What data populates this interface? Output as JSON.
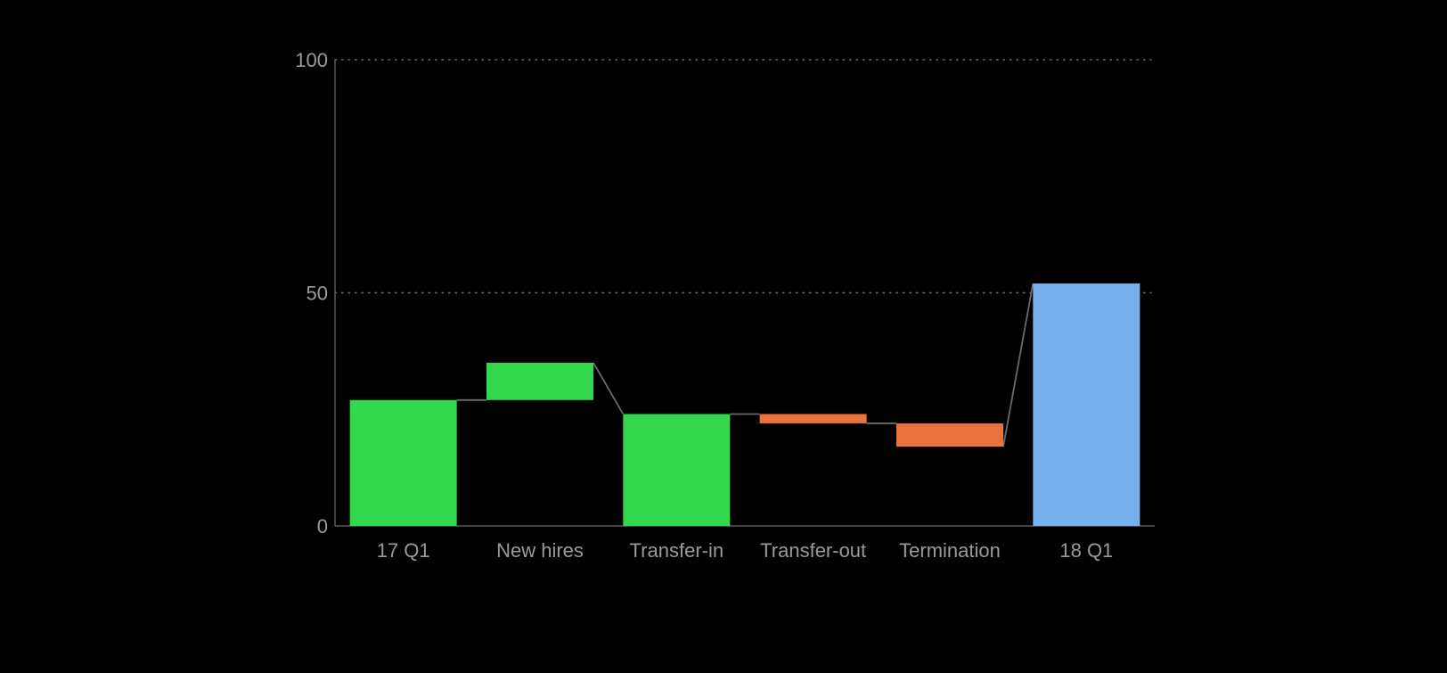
{
  "chart_data": {
    "type": "bar",
    "subtype": "waterfall",
    "categories": [
      "17 Q1",
      "New hires",
      "Transfer-in",
      "Transfer-out",
      "Termination",
      "18 Q1"
    ],
    "bars": [
      {
        "category": "17 Q1",
        "start": 0,
        "end": 27,
        "kind": "total-increase"
      },
      {
        "category": "New hires",
        "start": 27,
        "end": 35,
        "kind": "increase"
      },
      {
        "category": "Transfer-in",
        "start": 0,
        "end": 24,
        "kind": "total-increase"
      },
      {
        "category": "Transfer-out",
        "start": 24,
        "end": 22,
        "kind": "decrease"
      },
      {
        "category": "Termination",
        "start": 22,
        "end": 17,
        "kind": "decrease"
      },
      {
        "category": "18 Q1",
        "start": 0,
        "end": 52,
        "kind": "total"
      }
    ],
    "connectors": [
      {
        "from": 0,
        "to": 1,
        "value": 27
      },
      {
        "from": 1,
        "to": 2,
        "value_from": 35,
        "value_to": 24
      },
      {
        "from": 2,
        "to": 3,
        "value": 24
      },
      {
        "from": 3,
        "to": 4,
        "value": 22
      },
      {
        "from": 4,
        "to": 5,
        "value_from": 17,
        "value_to": 52
      }
    ],
    "yticks": [
      0,
      50,
      100
    ],
    "ylim": [
      0,
      100
    ],
    "title": "",
    "xlabel": "",
    "ylabel": "",
    "grid": "horizontal-dotted",
    "legend": "none",
    "colors": {
      "increase": "#32D74B",
      "decrease": "#E8743B",
      "total": "#77B2EE",
      "background": "#000000",
      "axis": "#5A5A5A",
      "gridline": "#6E6E6E",
      "connector": "#6A6A6A",
      "tick_label": "#9A9A9A"
    }
  }
}
